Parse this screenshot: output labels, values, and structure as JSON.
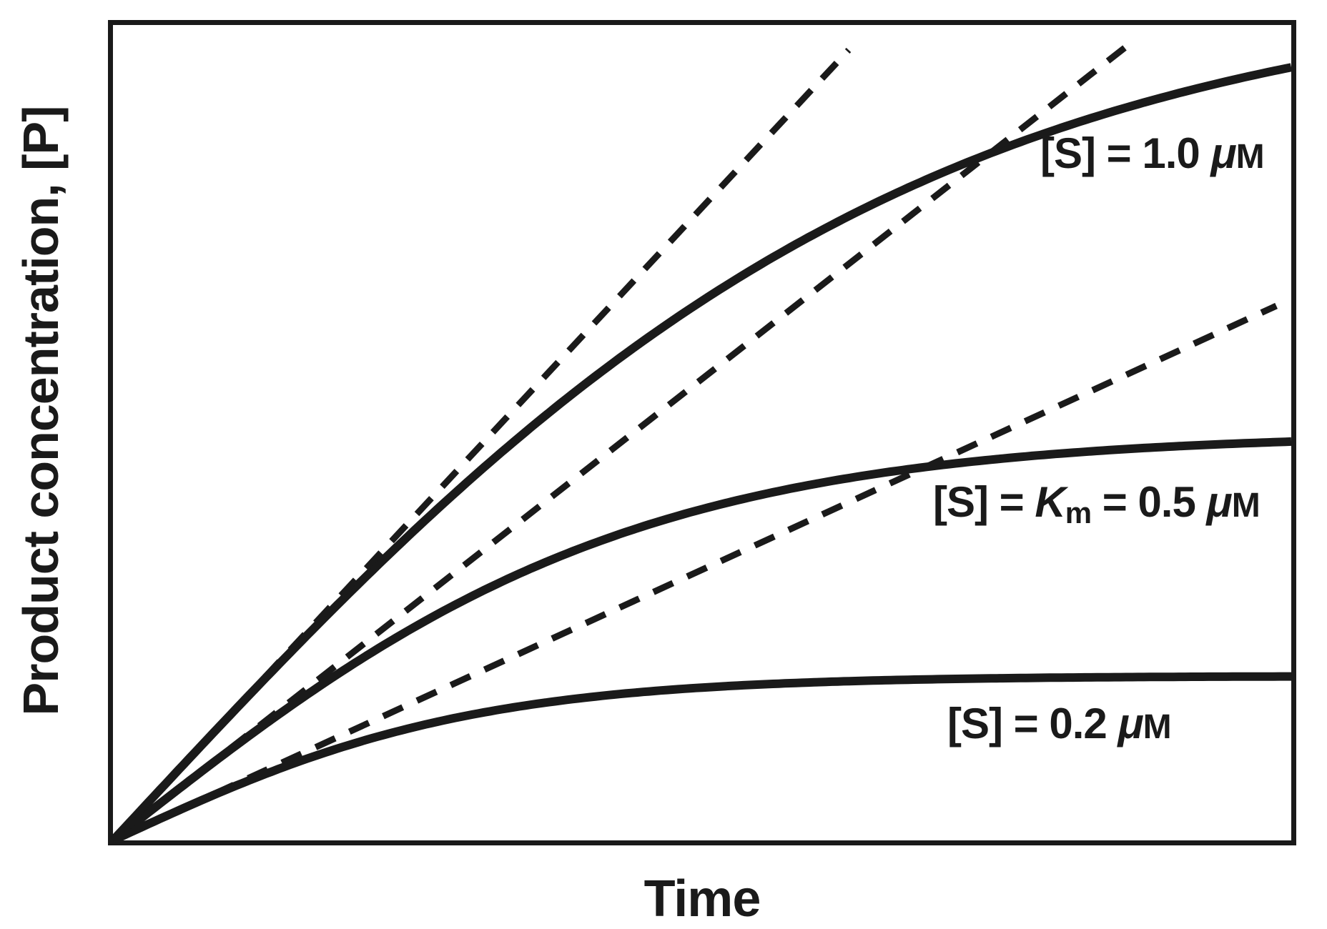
{
  "figure": {
    "x_axis_label": "Time",
    "y_axis_label": "Product concentration, [P]",
    "line_color": "#1a1a1a",
    "background_color": "#ffffff"
  },
  "chart_data": {
    "type": "line",
    "title": "",
    "xlabel": "Time",
    "ylabel": "Product concentration, [P]",
    "x_range": [
      0,
      1
    ],
    "y_range": [
      0,
      1
    ],
    "grid": false,
    "tick_labels": "none (qualitative axes)",
    "legend_position": "inline annotations on curves",
    "series": [
      {
        "name": "[S] = 1.0 uM progress curve",
        "style": "solid",
        "model": "tanh",
        "v0_slope": 1.5567,
        "plateau": 1.0517,
        "end_point_xy": [
          1.0,
          0.949
        ]
      },
      {
        "name": "[S] = Km = 0.5 uM progress curve",
        "style": "solid",
        "model": "tanh",
        "v0_slope": 1.1353,
        "plateau": 0.4996,
        "end_point_xy": [
          1.0,
          0.489
        ]
      },
      {
        "name": "[S] = 0.2 uM progress curve",
        "style": "solid",
        "model": "tanh",
        "v0_slope": 0.6672,
        "plateau": 0.2016,
        "end_point_xy": [
          1.0,
          0.2015
        ]
      }
    ],
    "tangents": [
      {
        "name": "initial-velocity tangent for [S] = 1.0 uM",
        "style": "dashed",
        "x1": 0,
        "y1": 0,
        "x2": 0.6244,
        "y2": 0.9694
      },
      {
        "name": "initial-velocity tangent for [S] = 0.5 uM",
        "style": "dashed",
        "x1": 0,
        "y1": 0,
        "x2": 0.8586,
        "y2": 0.972
      },
      {
        "name": "initial-velocity tangent for [S] = 0.2 uM",
        "style": "dashed",
        "x1": 0,
        "y1": 0,
        "x2": 0.9873,
        "y2": 0.6556
      }
    ],
    "annotations": [
      {
        "id": "label-s-1.0",
        "plain_text": "[S] = 1.0 μM",
        "segments": [
          {
            "t": "[S] = 1.0 "
          },
          {
            "t": "μ",
            "s": "mu"
          },
          {
            "t": "M",
            "s": "sc"
          }
        ]
      },
      {
        "id": "label-s-km-0.5",
        "plain_text": "[S] = Km = 0.5 μM",
        "segments": [
          {
            "t": "[S] = "
          },
          {
            "t": "K",
            "s": "it"
          },
          {
            "t": "m",
            "s": "sub"
          },
          {
            "t": " = 0.5 "
          },
          {
            "t": "μ",
            "s": "mu"
          },
          {
            "t": "M",
            "s": "sc"
          }
        ]
      },
      {
        "id": "label-s-0.2",
        "plain_text": "[S] = 0.2 μM",
        "segments": [
          {
            "t": "[S] = 0.2 "
          },
          {
            "t": "μ",
            "s": "mu"
          },
          {
            "t": "M",
            "s": "sc"
          }
        ]
      }
    ]
  }
}
